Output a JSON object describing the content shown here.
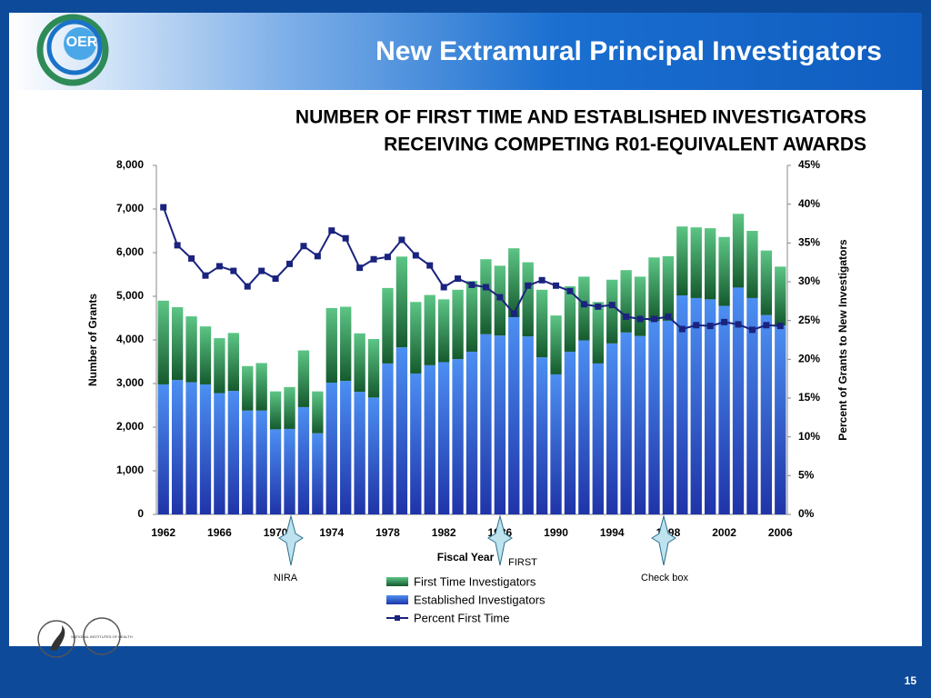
{
  "slide": {
    "header": "New Extramural Principal Investigators",
    "logo": "OER",
    "nih_logo": "NATIONAL INSTITUTES OF HEALTH",
    "page_number": "15"
  },
  "chart_data": {
    "type": "bar",
    "stacked": true,
    "title": [
      "NUMBER OF FIRST TIME AND ESTABLISHED INVESTIGATORS",
      "RECEIVING COMPETING R01-EQUIVALENT AWARDS"
    ],
    "x_label": "Fiscal Year",
    "y_label": "Number of Grants",
    "y2_label": "Percent of Grants to New Investigators",
    "categories": [
      "1962",
      null,
      null,
      null,
      "1966",
      null,
      null,
      null,
      "1970",
      null,
      null,
      null,
      "1974",
      null,
      null,
      null,
      "1978",
      null,
      null,
      null,
      "1982",
      null,
      null,
      null,
      "1986",
      null,
      null,
      null,
      "1990",
      null,
      null,
      null,
      "1994",
      null,
      null,
      null,
      "1998",
      null,
      null,
      null,
      "2002",
      null,
      null,
      null,
      "2006"
    ],
    "series": [
      {
        "name": "First Time Investigators",
        "color": "#2e8b57",
        "values": [
          1920,
          1670,
          1510,
          1330,
          1260,
          1330,
          1020,
          1090,
          870,
          960,
          1300,
          960,
          1710,
          1700,
          1340,
          1340,
          1730,
          2080,
          1640,
          1610,
          1440,
          1590,
          1620,
          1720,
          1600,
          1580,
          1700,
          1550,
          1350,
          1500,
          1460,
          1410,
          1460,
          1430,
          1360,
          1460,
          1480,
          1580,
          1620,
          1630,
          1580,
          1690,
          1540,
          1480,
          1350
        ]
      },
      {
        "name": "Established Investigators",
        "color": "#2b5fd9",
        "values": [
          2980,
          3080,
          3030,
          2980,
          2780,
          2830,
          2380,
          2380,
          1950,
          1960,
          2460,
          1860,
          3020,
          3060,
          2810,
          2680,
          3460,
          3830,
          3230,
          3420,
          3490,
          3560,
          3730,
          4130,
          4100,
          4520,
          4080,
          3600,
          3210,
          3730,
          3990,
          3460,
          3920,
          4170,
          4090,
          4430,
          4440,
          5020,
          4960,
          4930,
          4780,
          5200,
          4960,
          4570,
          4330
        ]
      },
      {
        "name": "Percent First Time",
        "type": "line",
        "axis": "y2",
        "color": "#1a237e",
        "values": [
          39.6,
          34.7,
          33.0,
          30.8,
          32.0,
          31.4,
          29.4,
          31.4,
          30.4,
          32.3,
          34.6,
          33.3,
          36.6,
          35.6,
          31.8,
          32.9,
          33.2,
          35.4,
          33.4,
          32.1,
          29.3,
          30.4,
          29.6,
          29.3,
          28.0,
          25.9,
          29.5,
          30.2,
          29.5,
          28.8,
          27.1,
          26.8,
          27.0,
          25.5,
          25.2,
          25.2,
          25.5,
          23.9,
          24.4,
          24.3,
          24.8,
          24.5,
          23.8,
          24.4,
          24.3
        ]
      }
    ],
    "ylim": [
      0,
      8000
    ],
    "yticks": [
      0,
      {
        "value": 1000,
        "label": "1,000"
      },
      {
        "value": 2000,
        "label": "2,000"
      },
      {
        "value": 3000,
        "label": "3,000"
      },
      {
        "value": 4000,
        "label": "4,000"
      },
      {
        "value": 5000,
        "label": "5,000"
      },
      {
        "value": 6000,
        "label": "6,000"
      },
      {
        "value": 7000,
        "label": "7,000"
      },
      {
        "value": 8000,
        "label": "8,000"
      }
    ],
    "y2lim": [
      0,
      45
    ],
    "y2ticks": [
      {
        "value": 0,
        "label": "0%"
      },
      {
        "value": 5,
        "label": "5%"
      },
      {
        "value": 10,
        "label": "10%"
      },
      {
        "value": 15,
        "label": "15%"
      },
      {
        "value": 20,
        "label": "20%"
      },
      {
        "value": 25,
        "label": "25%"
      },
      {
        "value": 30,
        "label": "30%"
      },
      {
        "value": 35,
        "label": "35%"
      },
      {
        "value": 40,
        "label": "40%"
      },
      {
        "value": 45,
        "label": "45%"
      }
    ],
    "grid": false,
    "legend": "bottom",
    "annotations": [
      "NIRA",
      "FIRST",
      "Check box"
    ]
  }
}
